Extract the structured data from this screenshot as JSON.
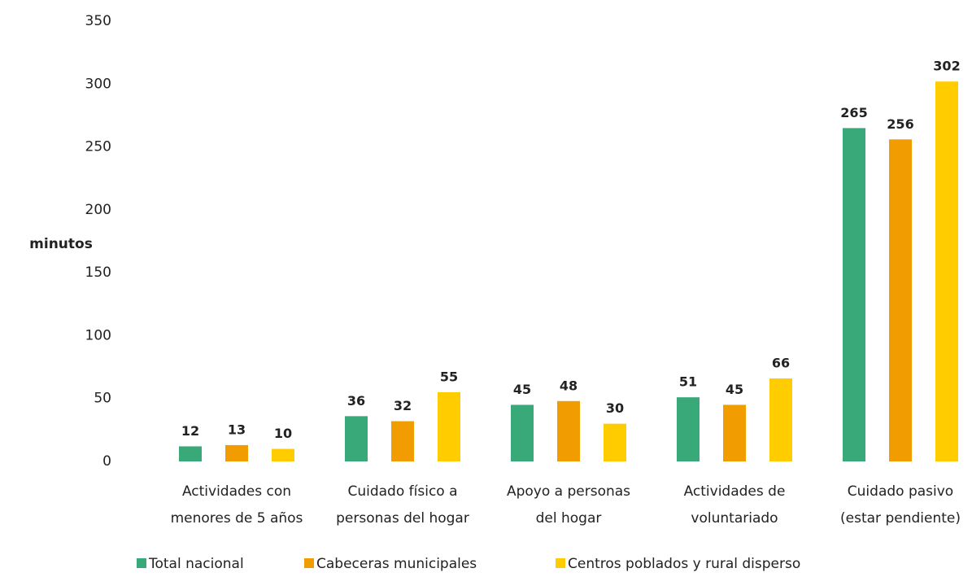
{
  "chart_data": {
    "type": "bar",
    "y_label": "minutos",
    "categories": [
      [
        "Actividades con",
        "menores de 5 años"
      ],
      [
        "Cuidado físico a",
        "personas del hogar"
      ],
      [
        "Apoyo a personas",
        "del hogar"
      ],
      [
        "Actividades de",
        "voluntariado"
      ],
      [
        "Cuidado pasivo",
        "(estar pendiente)"
      ]
    ],
    "series": [
      {
        "name": "Total nacional",
        "color": "#3aa97a",
        "values": [
          12,
          36,
          45,
          51,
          265
        ]
      },
      {
        "name": "Cabeceras municipales",
        "color": "#f19c00",
        "values": [
          13,
          32,
          48,
          45,
          256
        ]
      },
      {
        "name": "Centros poblados y rural disperso",
        "color": "#ffcc00",
        "values": [
          10,
          55,
          30,
          66,
          302
        ]
      }
    ],
    "ylim": [
      0,
      350
    ],
    "yticks": [
      0,
      50,
      100,
      150,
      200,
      250,
      300,
      350
    ],
    "grid": false,
    "legend": "bottom"
  }
}
